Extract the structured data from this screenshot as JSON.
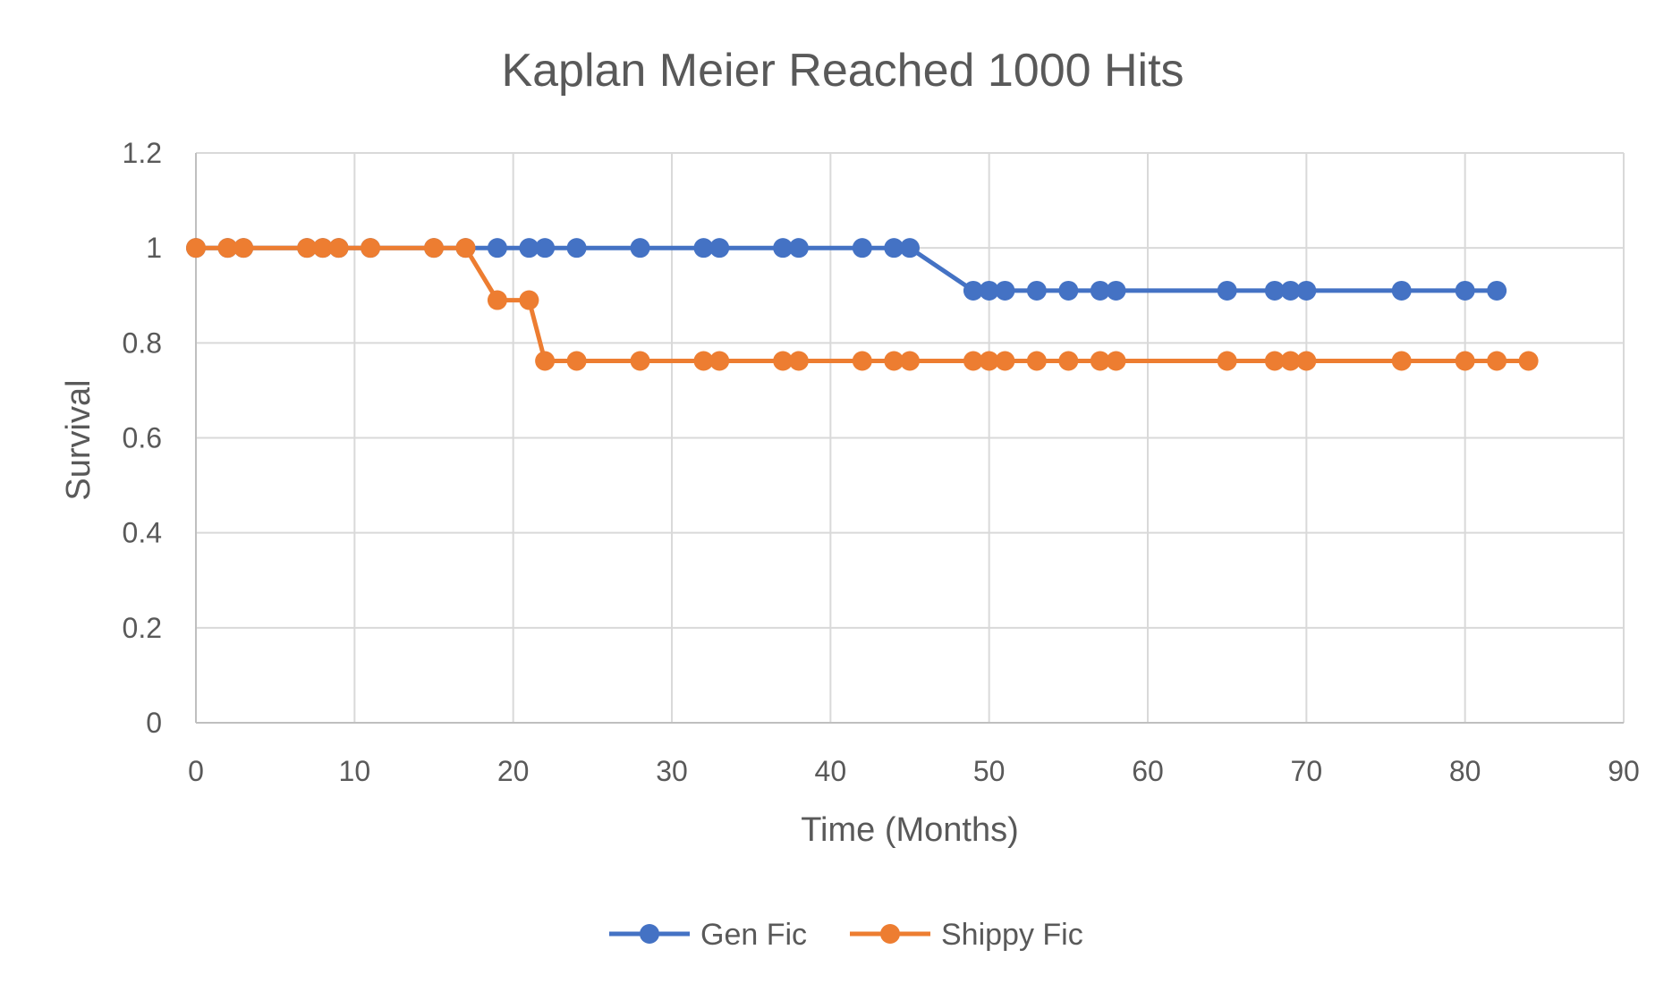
{
  "chart_data": {
    "type": "line",
    "title": "Kaplan Meier Reached 1000 Hits",
    "xlabel": "Time (Months)",
    "ylabel": "Survival",
    "xlim": [
      0,
      90
    ],
    "ylim": [
      0,
      1.2
    ],
    "xticks": [
      "0",
      "10",
      "20",
      "30",
      "40",
      "50",
      "60",
      "70",
      "80",
      "90"
    ],
    "yticks": [
      "0",
      "0.2",
      "0.4",
      "0.6",
      "0.8",
      "1",
      "1.2"
    ],
    "grid": true,
    "legend_position": "bottom",
    "series": [
      {
        "name": "Gen Fic",
        "color": "#4472C4",
        "x": [
          0,
          2,
          3,
          7,
          8,
          9,
          11,
          15,
          17,
          19,
          21,
          22,
          24,
          28,
          32,
          33,
          37,
          38,
          42,
          44,
          45,
          49,
          50,
          51,
          53,
          55,
          57,
          58,
          65,
          68,
          69,
          70,
          76,
          80,
          82
        ],
        "y": [
          1,
          1,
          1,
          1,
          1,
          1,
          1,
          1,
          1,
          1,
          1,
          1,
          1,
          1,
          1,
          1,
          1,
          1,
          1,
          1,
          1,
          0.91,
          0.91,
          0.91,
          0.91,
          0.91,
          0.91,
          0.91,
          0.91,
          0.91,
          0.91,
          0.91,
          0.91,
          0.91,
          0.91
        ]
      },
      {
        "name": "Shippy Fic",
        "color": "#ED7D31",
        "x": [
          0,
          2,
          3,
          7,
          8,
          9,
          11,
          15,
          17,
          19,
          21,
          22,
          24,
          28,
          32,
          33,
          37,
          38,
          42,
          44,
          45,
          49,
          50,
          51,
          53,
          55,
          57,
          58,
          65,
          68,
          69,
          70,
          76,
          80,
          82,
          84
        ],
        "y": [
          1,
          1,
          1,
          1,
          1,
          1,
          1,
          1,
          1,
          0.89,
          0.89,
          0.762,
          0.762,
          0.762,
          0.762,
          0.762,
          0.762,
          0.762,
          0.762,
          0.762,
          0.762,
          0.762,
          0.762,
          0.762,
          0.762,
          0.762,
          0.762,
          0.762,
          0.762,
          0.762,
          0.762,
          0.762,
          0.762,
          0.762,
          0.762,
          0.762
        ]
      }
    ]
  }
}
